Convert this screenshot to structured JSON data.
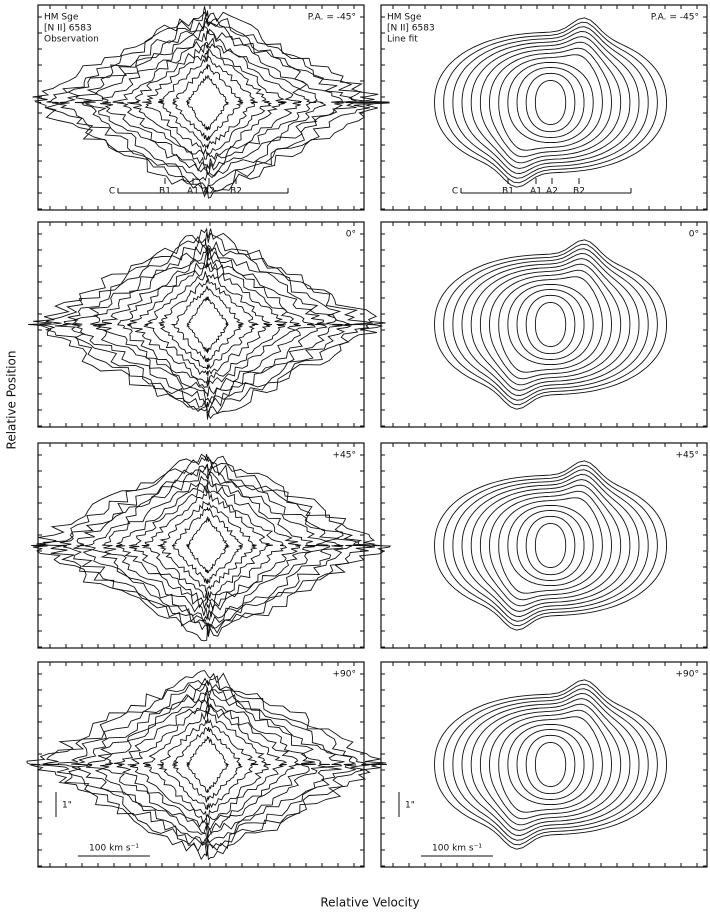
{
  "y_axis_label": "Relative Position",
  "x_axis_label": "Relative Velocity",
  "panels": [
    {
      "header": [
        "HM Sge",
        "[N II] 6583",
        "Observation"
      ],
      "pa": "P.A. = -45°",
      "markers": [
        "C",
        "B1",
        "A1",
        "A2",
        "B2"
      ]
    },
    {
      "header": [
        "HM Sge",
        "[N II] 6583",
        "Line fit"
      ],
      "pa": "P.A. = -45°",
      "markers": [
        "C",
        "B1",
        "A1",
        "A2",
        "B2"
      ]
    },
    {
      "pa": "0°"
    },
    {
      "pa": "0°"
    },
    {
      "pa": "+45°"
    },
    {
      "pa": "+45°"
    },
    {
      "pa": "+90°",
      "scale_y": "1\"",
      "scale_x": "100 km s⁻¹"
    },
    {
      "pa": "+90°",
      "scale_y": "1\"",
      "scale_x": "100 km s⁻¹"
    }
  ]
}
